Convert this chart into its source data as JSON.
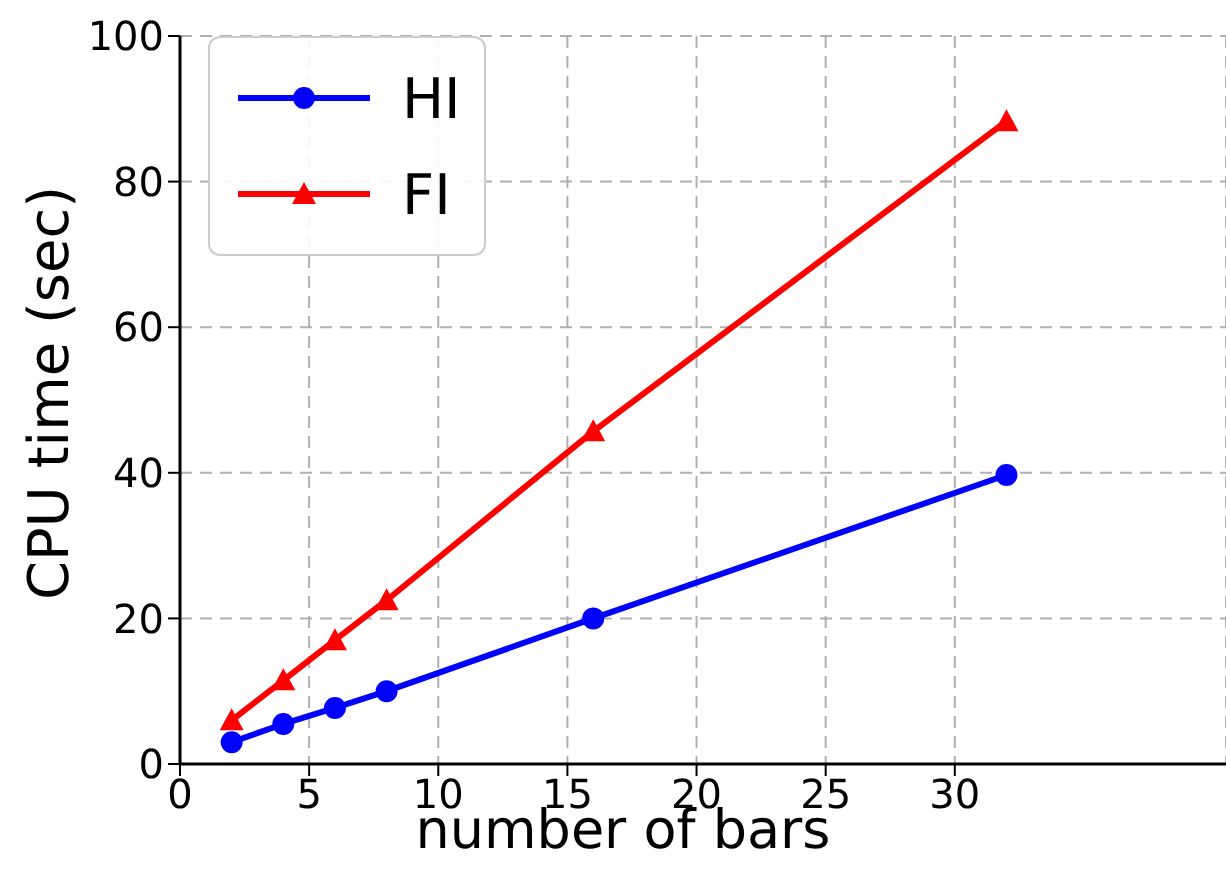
{
  "chart_data": {
    "type": "line",
    "xlabel": "number of bars",
    "ylabel": "CPU time (sec)",
    "x": [
      2,
      4,
      6,
      8,
      16,
      32
    ],
    "series": [
      {
        "name": "HI",
        "color": "#0000ff",
        "marker": "circle",
        "values": [
          3,
          5.5,
          7.7,
          10,
          20,
          39.7
        ]
      },
      {
        "name": "FI",
        "color": "#ff0000",
        "marker": "triangle",
        "values": [
          6,
          11.5,
          17,
          22.5,
          45.7,
          88.3
        ]
      }
    ],
    "xlim": [
      0,
      40.5
    ],
    "xticks": [
      0,
      5,
      10,
      15,
      20,
      25,
      30
    ],
    "ylim": [
      0,
      100
    ],
    "yticks": [
      0,
      20,
      40,
      60,
      80,
      100
    ],
    "grid": true,
    "legend": "top left",
    "line_style": "solid"
  }
}
